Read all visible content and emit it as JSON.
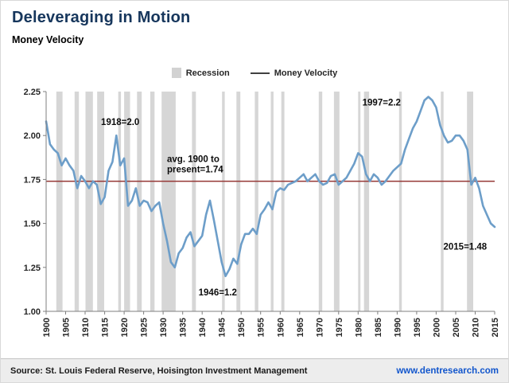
{
  "header": {
    "title": "Deleveraging in Motion",
    "subtitle": "Money Velocity"
  },
  "legend": [
    {
      "label": "Recession",
      "swatch": "box",
      "color": "#d2d2d2"
    },
    {
      "label": "Money Velocity",
      "swatch": "line",
      "color": "#404040"
    }
  ],
  "footer": {
    "source": "Source: St. Louis Federal Reserve, Hoisington Investment Management",
    "url": "www.dentresearch.com"
  },
  "chart_data": {
    "type": "line",
    "title": "Money Velocity",
    "xlabel": "",
    "ylabel": "",
    "xlim": [
      1900,
      2015
    ],
    "ylim": [
      1.0,
      2.25
    ],
    "yticks": [
      1.0,
      1.25,
      1.5,
      1.75,
      2.0,
      2.25
    ],
    "xticks": [
      1900,
      1905,
      1910,
      1915,
      1920,
      1925,
      1930,
      1935,
      1940,
      1945,
      1950,
      1955,
      1960,
      1965,
      1970,
      1975,
      1980,
      1985,
      1990,
      1995,
      2000,
      2005,
      2010,
      2015
    ],
    "line_color": "#6d9ec9",
    "recession_color": "#d6d6d6",
    "axis_color": "#7f7f7f",
    "avg_line": {
      "value": 1.74,
      "color": "#953735"
    },
    "x": [
      1900,
      1901,
      1902,
      1903,
      1904,
      1905,
      1906,
      1907,
      1908,
      1909,
      1910,
      1911,
      1912,
      1913,
      1914,
      1915,
      1916,
      1917,
      1918,
      1919,
      1920,
      1921,
      1922,
      1923,
      1924,
      1925,
      1926,
      1927,
      1928,
      1929,
      1930,
      1931,
      1932,
      1933,
      1934,
      1935,
      1936,
      1937,
      1938,
      1939,
      1940,
      1941,
      1942,
      1943,
      1944,
      1945,
      1946,
      1947,
      1948,
      1949,
      1950,
      1951,
      1952,
      1953,
      1954,
      1955,
      1956,
      1957,
      1958,
      1959,
      1960,
      1961,
      1962,
      1963,
      1964,
      1965,
      1966,
      1967,
      1968,
      1969,
      1970,
      1971,
      1972,
      1973,
      1974,
      1975,
      1976,
      1977,
      1978,
      1979,
      1980,
      1981,
      1982,
      1983,
      1984,
      1985,
      1986,
      1987,
      1988,
      1989,
      1990,
      1991,
      1992,
      1993,
      1994,
      1995,
      1996,
      1997,
      1998,
      1999,
      2000,
      2001,
      2002,
      2003,
      2004,
      2005,
      2006,
      2007,
      2008,
      2009,
      2010,
      2011,
      2012,
      2013,
      2014,
      2015
    ],
    "values": [
      2.08,
      1.95,
      1.92,
      1.9,
      1.83,
      1.87,
      1.83,
      1.8,
      1.7,
      1.77,
      1.74,
      1.7,
      1.74,
      1.72,
      1.61,
      1.65,
      1.8,
      1.85,
      2.0,
      1.83,
      1.87,
      1.6,
      1.63,
      1.7,
      1.6,
      1.63,
      1.62,
      1.57,
      1.6,
      1.62,
      1.5,
      1.4,
      1.28,
      1.25,
      1.33,
      1.36,
      1.42,
      1.45,
      1.37,
      1.4,
      1.43,
      1.55,
      1.63,
      1.52,
      1.4,
      1.28,
      1.2,
      1.24,
      1.3,
      1.27,
      1.38,
      1.44,
      1.44,
      1.47,
      1.44,
      1.55,
      1.58,
      1.62,
      1.58,
      1.68,
      1.7,
      1.69,
      1.72,
      1.73,
      1.74,
      1.76,
      1.78,
      1.74,
      1.76,
      1.78,
      1.74,
      1.72,
      1.73,
      1.77,
      1.78,
      1.72,
      1.74,
      1.76,
      1.8,
      1.84,
      1.9,
      1.88,
      1.78,
      1.74,
      1.78,
      1.76,
      1.72,
      1.74,
      1.77,
      1.8,
      1.82,
      1.84,
      1.92,
      1.98,
      2.04,
      2.08,
      2.14,
      2.2,
      2.22,
      2.2,
      2.16,
      2.06,
      2.0,
      1.96,
      1.97,
      2.0,
      2.0,
      1.97,
      1.92,
      1.72,
      1.76,
      1.7,
      1.6,
      1.55,
      1.5,
      1.48
    ],
    "recessions": [
      [
        1902.6,
        1904.2
      ],
      [
        1907.3,
        1908.4
      ],
      [
        1910.1,
        1912.0
      ],
      [
        1913.1,
        1914.9
      ],
      [
        1918.5,
        1919.2
      ],
      [
        1920.0,
        1921.5
      ],
      [
        1923.3,
        1924.5
      ],
      [
        1926.7,
        1927.8
      ],
      [
        1929.6,
        1933.2
      ],
      [
        1937.4,
        1938.4
      ],
      [
        1945.1,
        1945.8
      ],
      [
        1948.8,
        1949.8
      ],
      [
        1953.5,
        1954.4
      ],
      [
        1957.6,
        1958.3
      ],
      [
        1960.3,
        1961.1
      ],
      [
        1969.9,
        1970.8
      ],
      [
        1973.8,
        1975.2
      ],
      [
        1980.0,
        1980.6
      ],
      [
        1981.5,
        1982.8
      ],
      [
        1990.5,
        1991.2
      ],
      [
        2001.2,
        2001.9
      ],
      [
        2007.9,
        2009.5
      ]
    ],
    "annotations": [
      {
        "text": "1918=2.0",
        "year": 1919,
        "value": 2.06,
        "anchor": "middle"
      },
      {
        "text": "avg. 1900 to present=1.74",
        "lines": [
          "avg. 1900 to",
          "present=1.74"
        ],
        "year": 1931,
        "value": 1.85,
        "anchor": "start"
      },
      {
        "text": "1997=2.2",
        "year": 1986,
        "value": 2.17,
        "anchor": "middle"
      },
      {
        "text": "1946=1.2",
        "year": 1944,
        "value": 1.09,
        "anchor": "middle"
      },
      {
        "text": "2015=1.48",
        "year": 2013,
        "value": 1.35,
        "anchor": "end"
      }
    ],
    "legend_position": "top-center",
    "grid": false
  }
}
